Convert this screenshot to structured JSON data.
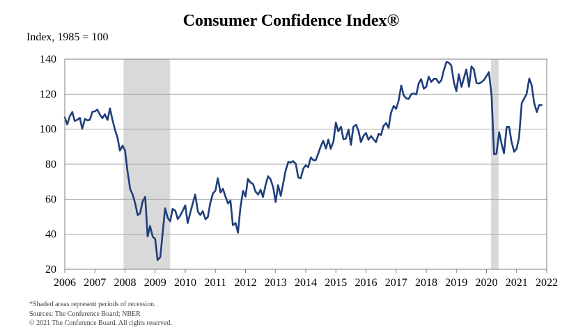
{
  "chart_data": {
    "type": "line",
    "title": "Consumer Confidence Index®",
    "ylabel": "Index, 1985 = 100",
    "xlabel": "",
    "xlim": [
      2006,
      2022
    ],
    "ylim": [
      20,
      140
    ],
    "yticks": [
      20,
      40,
      60,
      80,
      100,
      120,
      140
    ],
    "y_tick_labels": [
      "20",
      "40",
      "60",
      "80",
      "100",
      "120",
      "140"
    ],
    "xticks": [
      2006,
      2007,
      2008,
      2009,
      2010,
      2011,
      2012,
      2013,
      2014,
      2015,
      2016,
      2017,
      2018,
      2019,
      2020,
      2021,
      2022
    ],
    "x_tick_labels": [
      "2006",
      "2007",
      "2008",
      "2009",
      "2010",
      "2011",
      "2012",
      "2013",
      "2014",
      "2015",
      "2016",
      "2017",
      "2018",
      "2019",
      "2020",
      "2021",
      "2022"
    ],
    "grid": true,
    "line_color": "#1f3f7a",
    "recession_color": "#d9d9d9",
    "recessions": [
      {
        "start": 2007.95,
        "end": 2009.5
      },
      {
        "start": 2020.15,
        "end": 2020.4
      }
    ],
    "series": [
      {
        "name": "Consumer Confidence Index",
        "x": [
          2006.0,
          2006.08,
          2006.17,
          2006.25,
          2006.33,
          2006.42,
          2006.5,
          2006.58,
          2006.67,
          2006.75,
          2006.83,
          2006.92,
          2007.0,
          2007.08,
          2007.17,
          2007.25,
          2007.33,
          2007.42,
          2007.5,
          2007.58,
          2007.67,
          2007.75,
          2007.83,
          2007.92,
          2008.0,
          2008.08,
          2008.17,
          2008.25,
          2008.33,
          2008.42,
          2008.5,
          2008.58,
          2008.67,
          2008.75,
          2008.83,
          2008.92,
          2009.0,
          2009.08,
          2009.17,
          2009.25,
          2009.33,
          2009.42,
          2009.5,
          2009.58,
          2009.67,
          2009.75,
          2009.83,
          2009.92,
          2010.0,
          2010.08,
          2010.17,
          2010.25,
          2010.33,
          2010.42,
          2010.5,
          2010.58,
          2010.67,
          2010.75,
          2010.83,
          2010.92,
          2011.0,
          2011.08,
          2011.17,
          2011.25,
          2011.33,
          2011.42,
          2011.5,
          2011.58,
          2011.67,
          2011.75,
          2011.83,
          2011.92,
          2012.0,
          2012.08,
          2012.17,
          2012.25,
          2012.33,
          2012.42,
          2012.5,
          2012.58,
          2012.67,
          2012.75,
          2012.83,
          2012.92,
          2013.0,
          2013.08,
          2013.17,
          2013.25,
          2013.33,
          2013.42,
          2013.5,
          2013.58,
          2013.67,
          2013.75,
          2013.83,
          2013.92,
          2014.0,
          2014.08,
          2014.17,
          2014.25,
          2014.33,
          2014.42,
          2014.5,
          2014.58,
          2014.67,
          2014.75,
          2014.83,
          2014.92,
          2015.0,
          2015.08,
          2015.17,
          2015.25,
          2015.33,
          2015.42,
          2015.5,
          2015.58,
          2015.67,
          2015.75,
          2015.83,
          2015.92,
          2016.0,
          2016.08,
          2016.17,
          2016.25,
          2016.33,
          2016.42,
          2016.5,
          2016.58,
          2016.67,
          2016.75,
          2016.83,
          2016.92,
          2017.0,
          2017.08,
          2017.17,
          2017.25,
          2017.33,
          2017.42,
          2017.5,
          2017.58,
          2017.67,
          2017.75,
          2017.83,
          2017.92,
          2018.0,
          2018.08,
          2018.17,
          2018.25,
          2018.33,
          2018.42,
          2018.5,
          2018.58,
          2018.67,
          2018.75,
          2018.83,
          2018.92,
          2019.0,
          2019.08,
          2019.17,
          2019.25,
          2019.33,
          2019.42,
          2019.5,
          2019.58,
          2019.67,
          2019.75,
          2019.83,
          2019.92,
          2020.0,
          2020.08,
          2020.17,
          2020.25,
          2020.33,
          2020.42,
          2020.5,
          2020.58,
          2020.67,
          2020.75,
          2020.83,
          2020.92,
          2021.0,
          2021.08,
          2021.17,
          2021.25,
          2021.33,
          2021.42,
          2021.5,
          2021.58,
          2021.67,
          2021.75,
          2021.83
        ],
        "values": [
          106.8,
          102.7,
          107.5,
          109.8,
          104.7,
          105.4,
          106.5,
          100.2,
          105.9,
          105.1,
          105.3,
          110.0,
          110.2,
          111.2,
          108.2,
          106.3,
          108.5,
          105.3,
          111.9,
          105.6,
          99.5,
          95.2,
          87.8,
          90.6,
          87.9,
          76.4,
          65.9,
          62.8,
          58.1,
          51.0,
          51.9,
          58.5,
          61.4,
          38.8,
          44.7,
          38.6,
          37.4,
          25.3,
          26.9,
          40.8,
          54.8,
          49.3,
          47.4,
          54.5,
          53.4,
          48.7,
          50.6,
          53.6,
          56.5,
          46.4,
          52.5,
          57.7,
          62.7,
          52.9,
          51.0,
          53.2,
          48.6,
          49.9,
          57.8,
          63.4,
          64.8,
          72.0,
          63.8,
          66.0,
          61.7,
          57.6,
          59.2,
          45.2,
          46.4,
          40.9,
          55.2,
          64.8,
          61.5,
          71.6,
          69.5,
          68.7,
          64.4,
          62.7,
          65.4,
          61.3,
          68.4,
          73.1,
          71.5,
          66.7,
          58.4,
          68.0,
          61.9,
          69.0,
          76.2,
          81.4,
          81.0,
          81.8,
          80.2,
          72.4,
          72.0,
          77.5,
          79.4,
          78.3,
          83.9,
          82.3,
          82.2,
          86.4,
          90.3,
          93.4,
          89.0,
          94.1,
          88.8,
          93.1,
          103.8,
          98.8,
          101.4,
          94.3,
          94.6,
          99.8,
          91.0,
          101.3,
          102.6,
          99.1,
          92.6,
          96.3,
          97.8,
          94.0,
          96.1,
          94.2,
          92.6,
          97.4,
          96.7,
          101.8,
          103.5,
          100.8,
          109.4,
          113.3,
          111.6,
          116.1,
          124.9,
          119.4,
          117.6,
          117.3,
          120.0,
          120.4,
          119.8,
          126.2,
          128.6,
          123.1,
          124.3,
          130.0,
          127.0,
          128.7,
          128.8,
          126.4,
          127.9,
          133.4,
          138.4,
          137.9,
          136.4,
          126.6,
          121.7,
          131.4,
          124.2,
          129.2,
          134.1,
          124.3,
          135.8,
          134.2,
          126.3,
          126.1,
          126.8,
          128.2,
          130.4,
          132.6,
          118.8,
          85.7,
          85.9,
          98.3,
          91.7,
          86.3,
          101.3,
          101.4,
          92.9,
          87.1,
          88.9,
          95.2,
          114.9,
          117.5,
          120.0,
          128.9,
          125.1,
          115.2,
          109.8,
          113.8,
          113.8
        ]
      }
    ],
    "notes": [
      "*Shaded areas represent periods of recession.",
      "Sources: The Conference Board; NBER",
      "© 2021 The Conference Board. All rights reserved."
    ]
  }
}
